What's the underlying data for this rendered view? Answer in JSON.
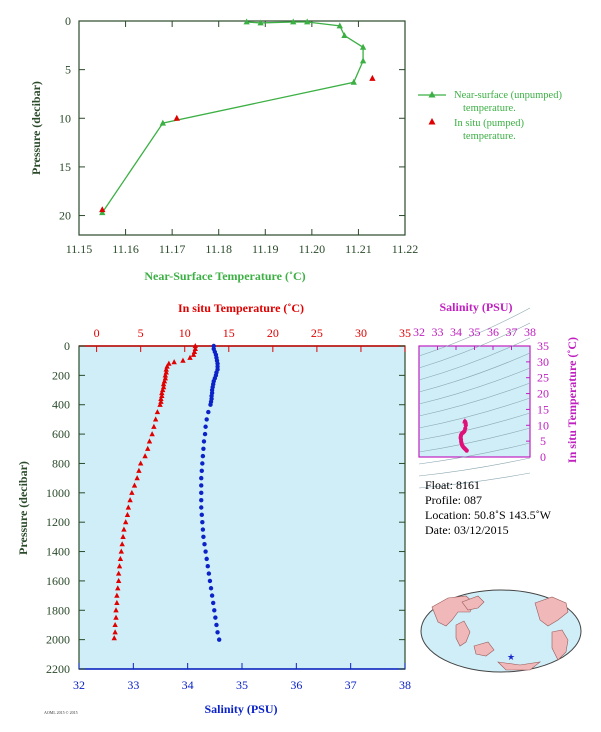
{
  "colors": {
    "near_surface": "#3cb044",
    "in_situ": "#e00000",
    "salinity": "#0a22c8",
    "purple": "#c020c0",
    "axis_dark": "#2a4a2a",
    "tick_text": "#2a4a2a",
    "panel_bg": "#d0eef8",
    "ts_marker": "#e0107a"
  },
  "chart_data": [
    {
      "type": "line",
      "title": "",
      "xlabel": "Near-Surface Temperature (˚C)",
      "ylabel": "Pressure (decibar)",
      "xlim": [
        11.15,
        11.22
      ],
      "ylim": [
        0,
        22
      ],
      "y_inverted": true,
      "xticks": [
        "11.15",
        "11.16",
        "11.17",
        "11.18",
        "11.19",
        "11.20",
        "11.21",
        "11.22"
      ],
      "yticks": [
        "0",
        "5",
        "10",
        "15",
        "20"
      ],
      "series": [
        {
          "name": "Near-surface (unpumped) temperature.",
          "marker": "triangle",
          "line": true,
          "x": [
            11.186,
            11.189,
            11.196,
            11.199,
            11.206,
            11.207,
            11.211,
            11.211,
            11.209,
            11.168,
            11.155
          ],
          "y": [
            0.1,
            0.2,
            0.1,
            0.1,
            0.5,
            1.5,
            2.7,
            4.1,
            6.3,
            10.5,
            19.7
          ]
        },
        {
          "name": "In situ (pumped) temperature.",
          "marker": "triangle",
          "line": false,
          "x": [
            11.213,
            11.171,
            11.155
          ],
          "y": [
            5.9,
            10.0,
            19.4
          ]
        }
      ],
      "legend": [
        {
          "line1": "Near-surface (unpumped)",
          "line2": "temperature."
        },
        {
          "line1": "In situ (pumped)",
          "line2": "temperature."
        }
      ],
      "legend_position": "right"
    },
    {
      "type": "line",
      "title": "",
      "xlabel_top": "In situ Temperature (˚C)",
      "xlabel_bottom": "Salinity (PSU)",
      "ylabel": "Pressure (decibar)",
      "temp_xlim": [
        -2,
        35
      ],
      "sal_xlim": [
        32,
        38
      ],
      "ylim": [
        0,
        2200
      ],
      "y_inverted": true,
      "temp_ticks": [
        "0",
        "5",
        "10",
        "15",
        "20",
        "25",
        "30",
        "35"
      ],
      "sal_ticks": [
        "32",
        "33",
        "34",
        "35",
        "36",
        "37",
        "38"
      ],
      "yticks": [
        "0",
        "200",
        "400",
        "600",
        "800",
        "1000",
        "1200",
        "1400",
        "1600",
        "1800",
        "2000",
        "2200"
      ],
      "series": [
        {
          "name": "In situ Temperature",
          "axis": "temp",
          "pressure": [
            0,
            20,
            40,
            60,
            80,
            100,
            110,
            120,
            140,
            160,
            180,
            200,
            220,
            240,
            260,
            280,
            300,
            320,
            340,
            360,
            380,
            400,
            450,
            500,
            550,
            600,
            650,
            700,
            750,
            800,
            850,
            900,
            950,
            1000,
            1050,
            1100,
            1150,
            1200,
            1250,
            1300,
            1350,
            1400,
            1450,
            1500,
            1550,
            1600,
            1650,
            1700,
            1750,
            1800,
            1850,
            1900,
            1950,
            1990
          ],
          "values": [
            11.2,
            11.2,
            11.1,
            11.0,
            10.6,
            9.8,
            8.8,
            8.2,
            8.0,
            7.9,
            7.9,
            7.8,
            7.8,
            7.7,
            7.6,
            7.6,
            7.5,
            7.4,
            7.4,
            7.3,
            7.3,
            7.2,
            6.9,
            6.7,
            6.5,
            6.3,
            6.0,
            5.8,
            5.5,
            5.0,
            4.8,
            4.6,
            4.3,
            4.0,
            3.8,
            3.6,
            3.5,
            3.3,
            3.1,
            3.0,
            2.9,
            2.8,
            2.7,
            2.6,
            2.5,
            2.5,
            2.4,
            2.3,
            2.3,
            2.2,
            2.2,
            2.1,
            2.1,
            2.0
          ]
        },
        {
          "name": "Salinity",
          "axis": "sal",
          "pressure": [
            0,
            20,
            40,
            60,
            80,
            100,
            120,
            140,
            160,
            180,
            200,
            220,
            240,
            260,
            280,
            300,
            320,
            340,
            360,
            380,
            400,
            450,
            500,
            550,
            600,
            650,
            700,
            750,
            800,
            850,
            900,
            950,
            1000,
            1050,
            1100,
            1150,
            1200,
            1250,
            1300,
            1350,
            1400,
            1450,
            1500,
            1550,
            1600,
            1650,
            1700,
            1750,
            1800,
            1850,
            1900,
            1950,
            2000
          ],
          "values": [
            34.48,
            34.48,
            34.5,
            34.52,
            34.53,
            34.54,
            34.55,
            34.55,
            34.55,
            34.53,
            34.52,
            34.5,
            34.48,
            34.47,
            34.46,
            34.45,
            34.45,
            34.44,
            34.44,
            34.43,
            34.42,
            34.38,
            34.35,
            34.33,
            34.32,
            34.3,
            34.29,
            34.28,
            34.27,
            34.26,
            34.25,
            34.25,
            34.25,
            34.25,
            34.25,
            34.26,
            34.27,
            34.28,
            34.29,
            34.31,
            34.33,
            34.35,
            34.37,
            34.39,
            34.41,
            34.43,
            34.45,
            34.47,
            34.49,
            34.51,
            34.53,
            34.55,
            34.58
          ]
        }
      ]
    },
    {
      "type": "scatter",
      "title": "",
      "xlabel": "Salinity (PSU)",
      "ylabel": "In situ Temperature (˚C)",
      "xlim": [
        32,
        38
      ],
      "ylim": [
        0,
        35
      ],
      "xticks": [
        "32",
        "33",
        "34",
        "35",
        "36",
        "37",
        "38"
      ],
      "yticks": [
        "0",
        "5",
        "10",
        "15",
        "20",
        "25",
        "30",
        "35"
      ],
      "points": {
        "x": [
          34.58,
          34.55,
          34.5,
          34.45,
          34.4,
          34.35,
          34.33,
          34.3,
          34.28,
          34.27,
          34.25,
          34.26,
          34.28,
          34.32,
          34.38,
          34.42,
          34.46,
          34.5,
          34.53,
          34.52,
          34.5,
          34.48
        ],
        "y": [
          2.0,
          2.2,
          2.5,
          2.8,
          3.1,
          3.5,
          3.8,
          4.3,
          4.8,
          5.5,
          6.0,
          6.5,
          7.0,
          7.4,
          7.7,
          7.9,
          8.2,
          9.0,
          10.0,
          10.6,
          11.0,
          11.2
        ]
      }
    }
  ],
  "info": {
    "float": "Float:  8161",
    "profile": "Profile:  087",
    "location": "Location:  50.8˚S  143.5˚W",
    "date": "Date:  03/12/2015"
  },
  "footer": "AOML 2015 © 2015"
}
